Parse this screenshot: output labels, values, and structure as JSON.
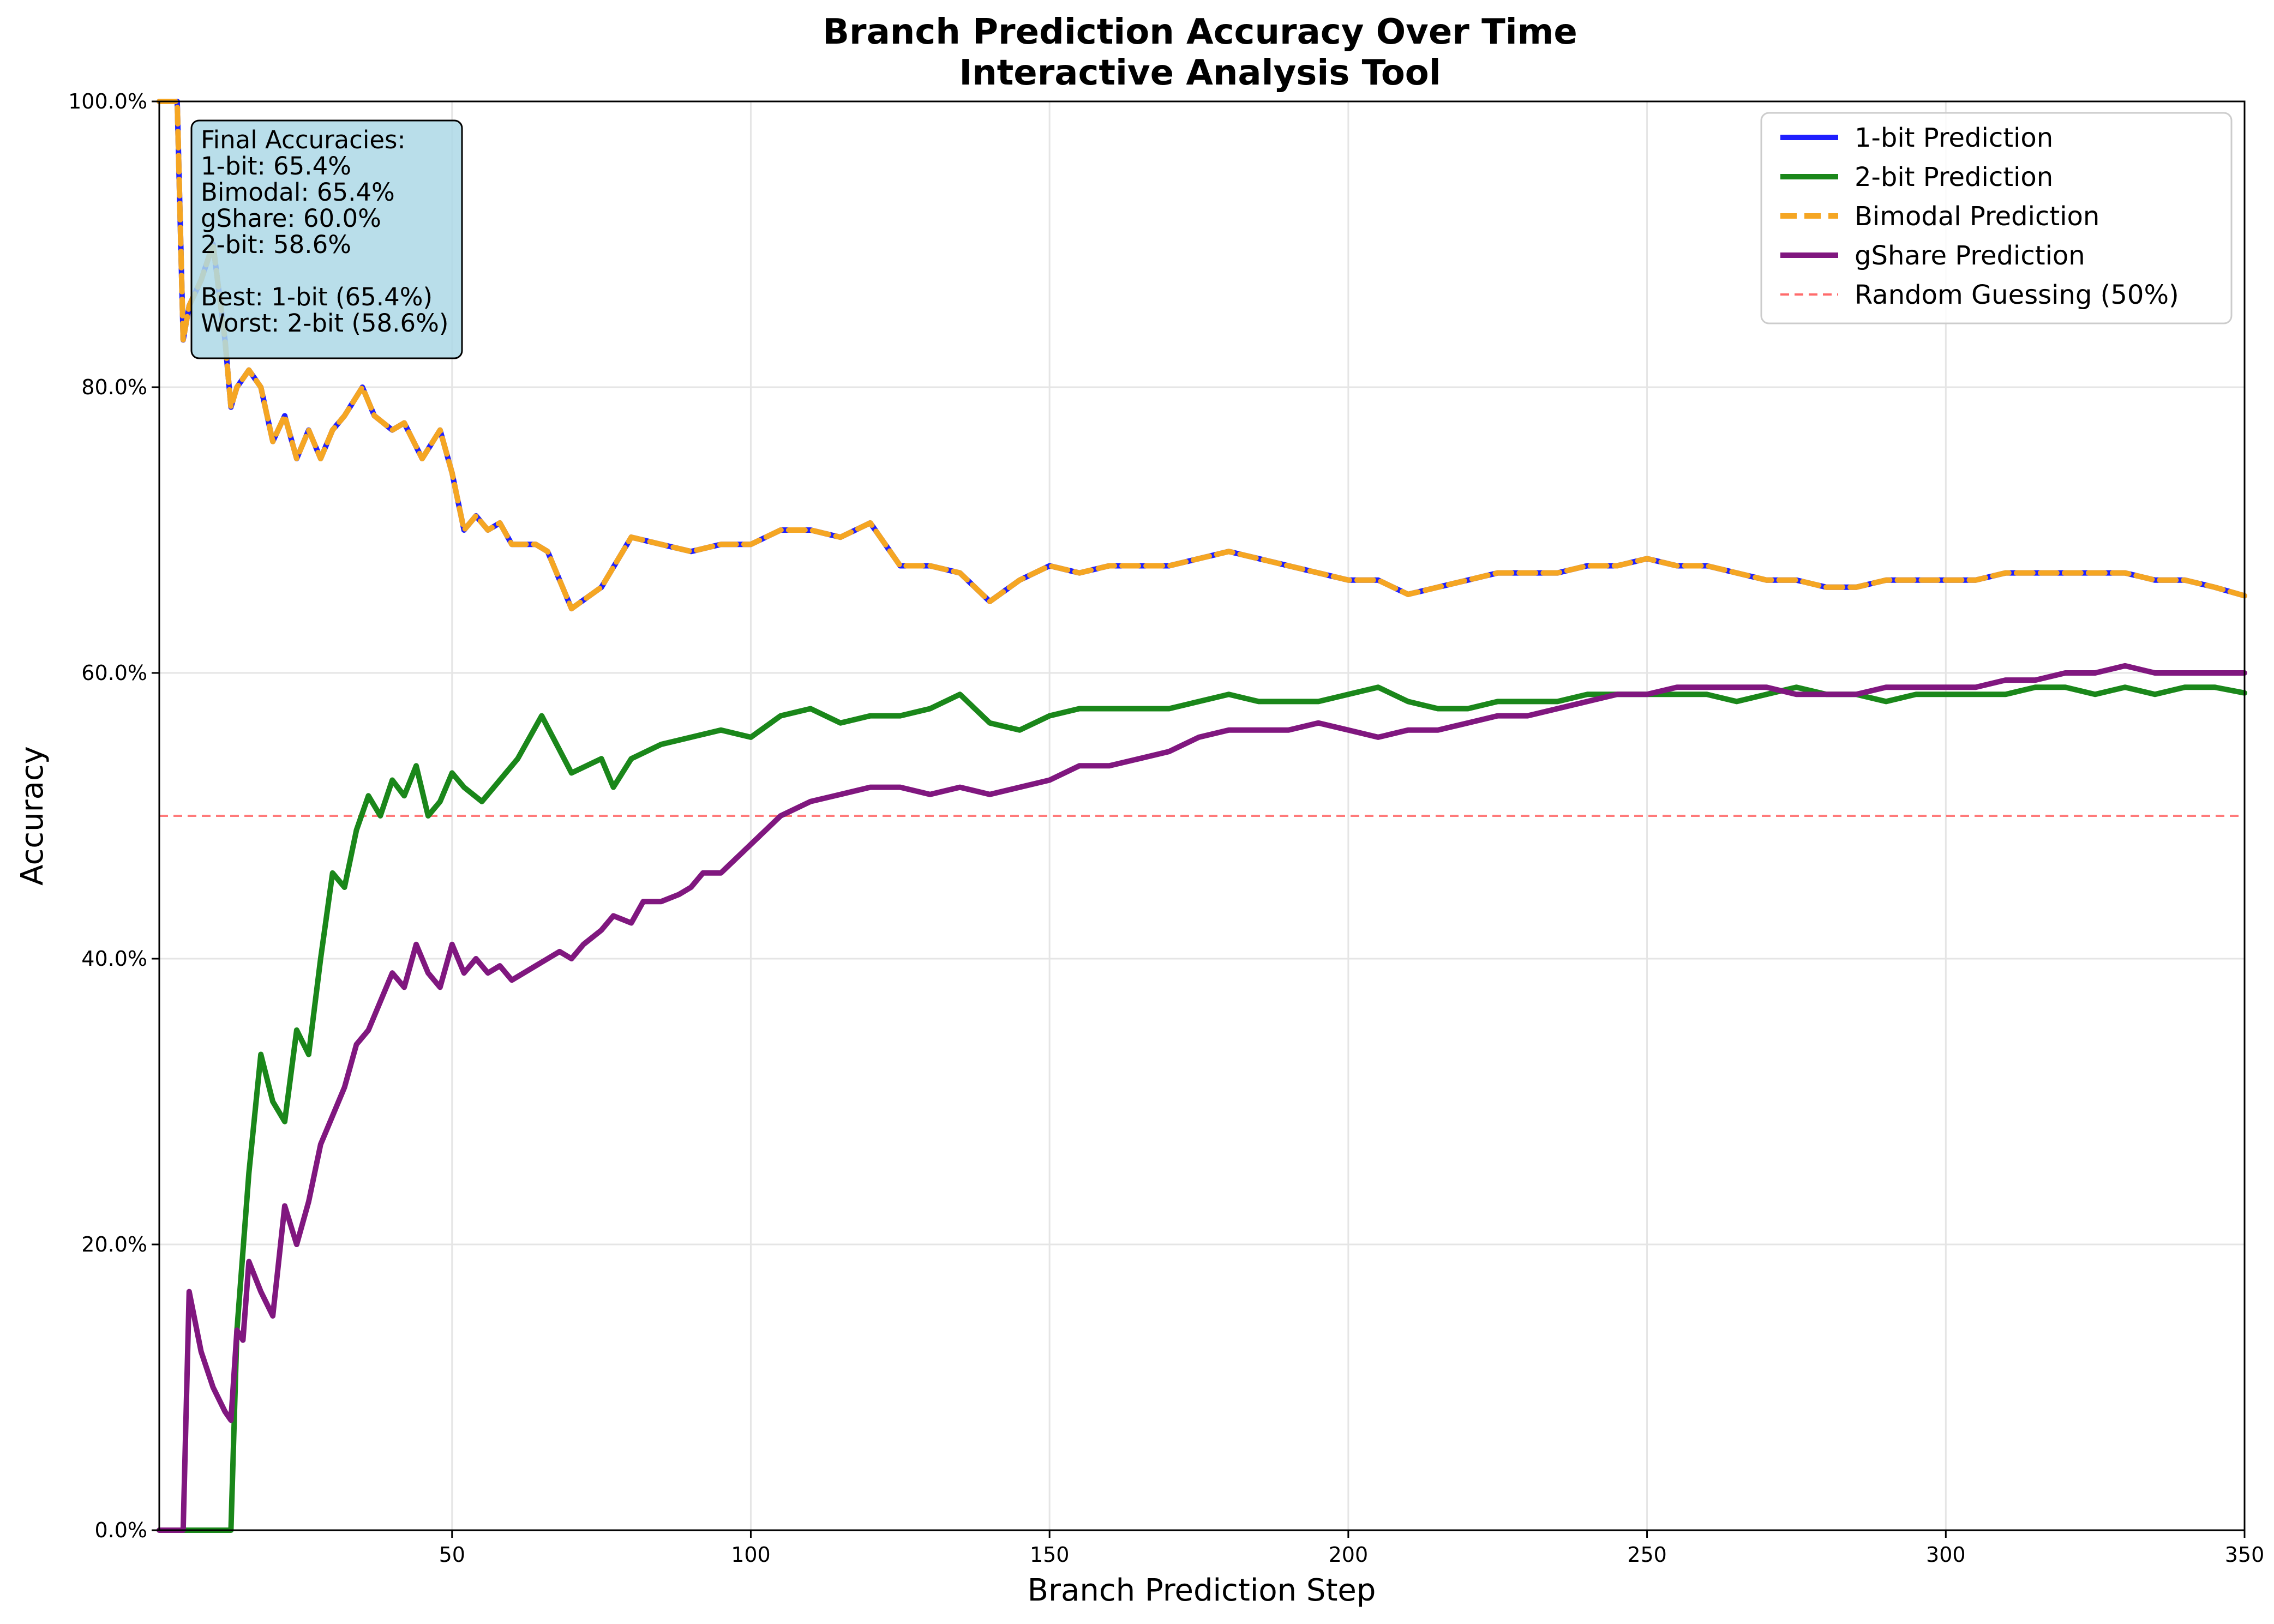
{
  "chart_data": {
    "type": "line",
    "title": "Branch Prediction Accuracy Over Time",
    "subtitle": "Interactive Analysis Tool",
    "xlabel": "Branch Prediction Step",
    "ylabel": "Accuracy",
    "xlim": [
      1,
      350
    ],
    "ylim": [
      0,
      1
    ],
    "x_ticks": [
      {
        "value": 50,
        "label": "50"
      },
      {
        "value": 100,
        "label": "100"
      },
      {
        "value": 150,
        "label": "150"
      },
      {
        "value": 200,
        "label": "200"
      },
      {
        "value": 250,
        "label": "250"
      },
      {
        "value": 300,
        "label": "300"
      },
      {
        "value": 350,
        "label": "350"
      }
    ],
    "y_ticks": [
      {
        "value": 0.0,
        "label": "0.0%"
      },
      {
        "value": 0.2,
        "label": "20.0%"
      },
      {
        "value": 0.4,
        "label": "40.0%"
      },
      {
        "value": 0.6,
        "label": "60.0%"
      },
      {
        "value": 0.8,
        "label": "80.0%"
      },
      {
        "value": 1.0,
        "label": "100.0%"
      }
    ],
    "grid": true,
    "legend_position": "top-right",
    "series": [
      {
        "name": "1-bit Prediction",
        "color": "#1f1fff",
        "style": "solid",
        "x": [
          1,
          4,
          5,
          6,
          8,
          10,
          12,
          13,
          14,
          16,
          18,
          20,
          22,
          24,
          26,
          28,
          30,
          32,
          35,
          37,
          40,
          42,
          45,
          48,
          50,
          52,
          54,
          56,
          58,
          60,
          62,
          64,
          66,
          68,
          70,
          75,
          80,
          85,
          90,
          95,
          100,
          105,
          110,
          115,
          120,
          125,
          130,
          135,
          140,
          145,
          150,
          155,
          160,
          165,
          170,
          175,
          180,
          185,
          190,
          195,
          200,
          205,
          210,
          215,
          220,
          225,
          230,
          235,
          240,
          245,
          250,
          255,
          260,
          265,
          270,
          275,
          280,
          285,
          290,
          295,
          300,
          305,
          310,
          315,
          320,
          325,
          330,
          335,
          340,
          345,
          350
        ],
        "y": [
          1.0,
          1.0,
          0.833,
          0.857,
          0.875,
          0.9,
          0.833,
          0.786,
          0.8,
          0.812,
          0.8,
          0.762,
          0.78,
          0.75,
          0.77,
          0.75,
          0.77,
          0.78,
          0.8,
          0.78,
          0.77,
          0.775,
          0.75,
          0.77,
          0.74,
          0.7,
          0.71,
          0.7,
          0.705,
          0.69,
          0.69,
          0.69,
          0.685,
          0.665,
          0.645,
          0.66,
          0.695,
          0.69,
          0.685,
          0.69,
          0.69,
          0.7,
          0.7,
          0.695,
          0.705,
          0.675,
          0.675,
          0.67,
          0.65,
          0.665,
          0.675,
          0.67,
          0.675,
          0.675,
          0.675,
          0.68,
          0.685,
          0.68,
          0.675,
          0.67,
          0.665,
          0.665,
          0.655,
          0.66,
          0.665,
          0.67,
          0.67,
          0.67,
          0.675,
          0.675,
          0.68,
          0.675,
          0.675,
          0.67,
          0.665,
          0.665,
          0.66,
          0.66,
          0.665,
          0.665,
          0.665,
          0.665,
          0.67,
          0.67,
          0.67,
          0.67,
          0.67,
          0.665,
          0.665,
          0.66,
          0.654
        ]
      },
      {
        "name": "2-bit Prediction",
        "color": "#1a871a",
        "style": "solid",
        "x": [
          1,
          5,
          6,
          8,
          10,
          12,
          13,
          14,
          16,
          18,
          20,
          22,
          24,
          26,
          28,
          30,
          32,
          34,
          36,
          38,
          40,
          42,
          44,
          46,
          48,
          50,
          52,
          55,
          58,
          61,
          65,
          70,
          75,
          77,
          80,
          85,
          90,
          95,
          100,
          105,
          110,
          115,
          120,
          125,
          130,
          135,
          140,
          145,
          150,
          155,
          160,
          165,
          170,
          175,
          180,
          185,
          190,
          195,
          200,
          205,
          210,
          215,
          220,
          225,
          230,
          235,
          240,
          245,
          250,
          255,
          260,
          265,
          270,
          275,
          280,
          285,
          290,
          295,
          300,
          305,
          310,
          315,
          320,
          325,
          330,
          335,
          340,
          345,
          350
        ],
        "y": [
          0.0,
          0.0,
          0.0,
          0.0,
          0.0,
          0.0,
          0.0,
          0.14,
          0.25,
          0.333,
          0.3,
          0.286,
          0.35,
          0.333,
          0.4,
          0.46,
          0.45,
          0.49,
          0.514,
          0.5,
          0.525,
          0.514,
          0.535,
          0.5,
          0.51,
          0.53,
          0.52,
          0.51,
          0.525,
          0.54,
          0.57,
          0.53,
          0.54,
          0.52,
          0.54,
          0.55,
          0.555,
          0.56,
          0.555,
          0.57,
          0.575,
          0.565,
          0.57,
          0.57,
          0.575,
          0.585,
          0.565,
          0.56,
          0.57,
          0.575,
          0.575,
          0.575,
          0.575,
          0.58,
          0.585,
          0.58,
          0.58,
          0.58,
          0.585,
          0.59,
          0.58,
          0.575,
          0.575,
          0.58,
          0.58,
          0.58,
          0.585,
          0.585,
          0.585,
          0.585,
          0.585,
          0.58,
          0.585,
          0.59,
          0.585,
          0.585,
          0.58,
          0.585,
          0.585,
          0.585,
          0.585,
          0.59,
          0.59,
          0.585,
          0.59,
          0.585,
          0.59,
          0.59,
          0.586
        ]
      },
      {
        "name": "Bimodal Prediction",
        "color": "#f5a623",
        "style": "dashed",
        "x": [
          1,
          4,
          5,
          6,
          8,
          10,
          12,
          13,
          14,
          16,
          18,
          20,
          22,
          24,
          26,
          28,
          30,
          32,
          35,
          37,
          40,
          42,
          45,
          48,
          50,
          52,
          54,
          56,
          58,
          60,
          62,
          64,
          66,
          68,
          70,
          75,
          80,
          85,
          90,
          95,
          100,
          105,
          110,
          115,
          120,
          125,
          130,
          135,
          140,
          145,
          150,
          155,
          160,
          165,
          170,
          175,
          180,
          185,
          190,
          195,
          200,
          205,
          210,
          215,
          220,
          225,
          230,
          235,
          240,
          245,
          250,
          255,
          260,
          265,
          270,
          275,
          280,
          285,
          290,
          295,
          300,
          305,
          310,
          315,
          320,
          325,
          330,
          335,
          340,
          345,
          350
        ],
        "y": [
          1.0,
          1.0,
          0.833,
          0.857,
          0.875,
          0.9,
          0.833,
          0.786,
          0.8,
          0.812,
          0.8,
          0.762,
          0.78,
          0.75,
          0.77,
          0.75,
          0.77,
          0.78,
          0.8,
          0.78,
          0.77,
          0.775,
          0.75,
          0.77,
          0.74,
          0.7,
          0.71,
          0.7,
          0.705,
          0.69,
          0.69,
          0.69,
          0.685,
          0.665,
          0.645,
          0.66,
          0.695,
          0.69,
          0.685,
          0.69,
          0.69,
          0.7,
          0.7,
          0.695,
          0.705,
          0.675,
          0.675,
          0.67,
          0.65,
          0.665,
          0.675,
          0.67,
          0.675,
          0.675,
          0.675,
          0.68,
          0.685,
          0.68,
          0.675,
          0.67,
          0.665,
          0.665,
          0.655,
          0.66,
          0.665,
          0.67,
          0.67,
          0.67,
          0.675,
          0.675,
          0.68,
          0.675,
          0.675,
          0.67,
          0.665,
          0.665,
          0.66,
          0.66,
          0.665,
          0.665,
          0.665,
          0.665,
          0.67,
          0.67,
          0.67,
          0.67,
          0.67,
          0.665,
          0.665,
          0.66,
          0.654
        ]
      },
      {
        "name": "gShare Prediction",
        "color": "#80177f",
        "style": "solid",
        "x": [
          1,
          4,
          5,
          6,
          8,
          10,
          12,
          13,
          14,
          15,
          16,
          18,
          20,
          22,
          24,
          26,
          28,
          30,
          32,
          34,
          36,
          38,
          40,
          42,
          44,
          46,
          48,
          50,
          52,
          54,
          56,
          58,
          60,
          62,
          64,
          66,
          68,
          70,
          72,
          75,
          77,
          80,
          82,
          85,
          88,
          90,
          92,
          95,
          100,
          105,
          110,
          115,
          120,
          125,
          130,
          135,
          140,
          145,
          150,
          155,
          160,
          165,
          170,
          175,
          180,
          185,
          190,
          195,
          200,
          205,
          210,
          215,
          220,
          225,
          230,
          235,
          240,
          245,
          250,
          255,
          260,
          265,
          270,
          275,
          280,
          285,
          290,
          295,
          300,
          305,
          310,
          315,
          320,
          325,
          330,
          335,
          340,
          345,
          350
        ],
        "y": [
          0.0,
          0.0,
          0.0,
          0.167,
          0.125,
          0.1,
          0.083,
          0.077,
          0.14,
          0.133,
          0.188,
          0.167,
          0.15,
          0.227,
          0.2,
          0.23,
          0.27,
          0.29,
          0.31,
          0.34,
          0.35,
          0.37,
          0.39,
          0.38,
          0.41,
          0.39,
          0.38,
          0.41,
          0.39,
          0.4,
          0.39,
          0.395,
          0.385,
          0.39,
          0.395,
          0.4,
          0.405,
          0.4,
          0.41,
          0.42,
          0.43,
          0.425,
          0.44,
          0.44,
          0.445,
          0.45,
          0.46,
          0.46,
          0.48,
          0.5,
          0.51,
          0.515,
          0.52,
          0.52,
          0.515,
          0.52,
          0.515,
          0.52,
          0.525,
          0.535,
          0.535,
          0.54,
          0.545,
          0.555,
          0.56,
          0.56,
          0.56,
          0.565,
          0.56,
          0.555,
          0.56,
          0.56,
          0.565,
          0.57,
          0.57,
          0.575,
          0.58,
          0.585,
          0.585,
          0.59,
          0.59,
          0.59,
          0.59,
          0.585,
          0.585,
          0.585,
          0.59,
          0.59,
          0.59,
          0.59,
          0.595,
          0.595,
          0.6,
          0.6,
          0.605,
          0.6,
          0.6,
          0.6,
          0.6
        ]
      },
      {
        "name": "Random Guessing (50%)",
        "color": "#ff6b6b",
        "style": "dashed",
        "x": [
          1,
          350
        ],
        "y": [
          0.5,
          0.5
        ]
      }
    ],
    "annotation": {
      "lines": [
        "Final Accuracies:",
        "1-bit: 65.4%",
        "Bimodal: 65.4%",
        "gShare: 60.0%",
        "2-bit: 58.6%",
        "",
        "Best: 1-bit (65.4%)",
        "Worst: 2-bit (58.6%)"
      ],
      "background": "#add8e6"
    }
  }
}
